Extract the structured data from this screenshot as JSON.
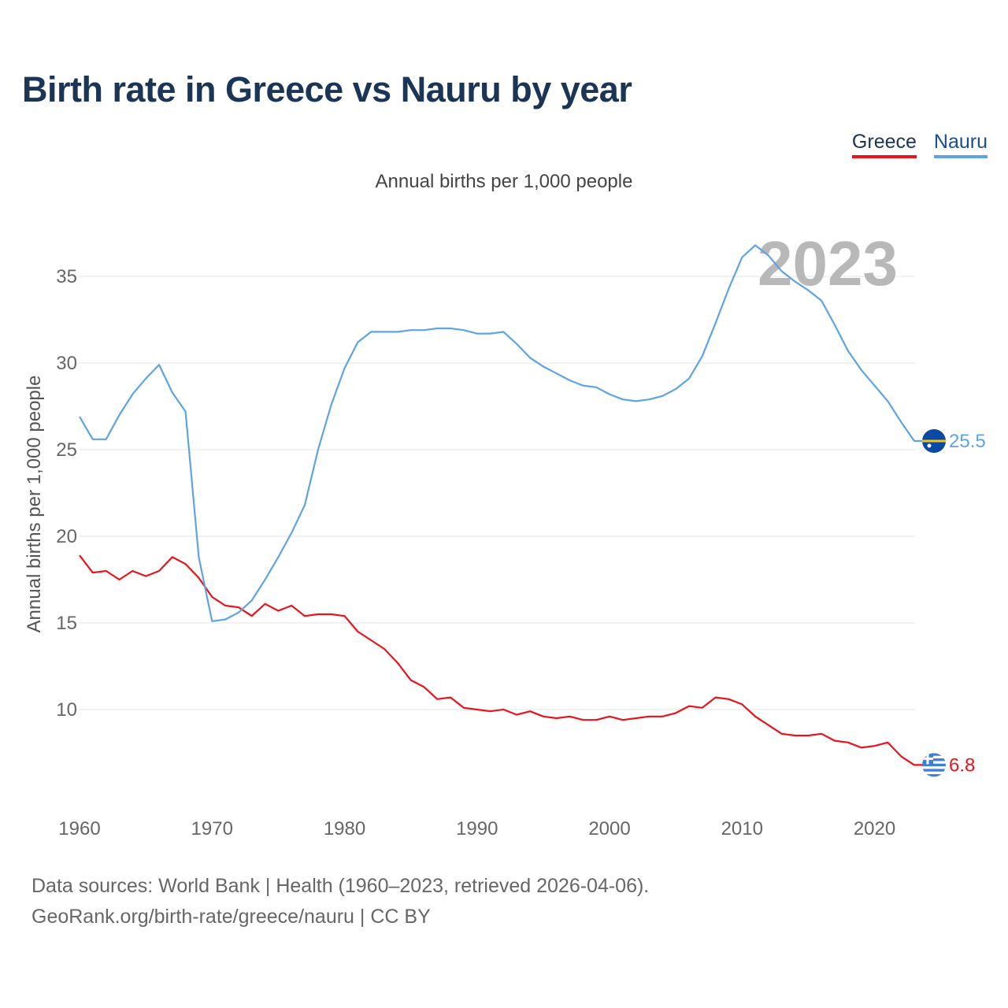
{
  "title": "Birth rate in Greece vs Nauru by year",
  "subtitle": "Annual births per 1,000 people",
  "legend": [
    {
      "name": "Greece",
      "color": "#e8141c",
      "text_color": "#1b3556"
    },
    {
      "name": "Nauru",
      "color": "#5ea3e4",
      "text_color": "#1b4f8a"
    }
  ],
  "footer": {
    "line1": "Data sources: World Bank | Health (1960–2023, retrieved 2026-04-06).",
    "line2": "GeoRank.org/birth-rate/greece/nauru | CC BY"
  },
  "chart_data": {
    "type": "line",
    "title": "Birth rate in Greece vs Nauru by year",
    "ylabel": "Annual births per 1,000 people",
    "xlabel": "",
    "year_label": "2023",
    "xlim": [
      1960,
      2023
    ],
    "ylim": [
      5,
      38
    ],
    "yticks": [
      10,
      15,
      20,
      25,
      30,
      35
    ],
    "xticks": [
      1960,
      1970,
      1980,
      1990,
      2000,
      2010,
      2020
    ],
    "x": [
      1960,
      1961,
      1962,
      1963,
      1964,
      1965,
      1966,
      1967,
      1968,
      1969,
      1970,
      1971,
      1972,
      1973,
      1974,
      1975,
      1976,
      1977,
      1978,
      1979,
      1980,
      1981,
      1982,
      1983,
      1984,
      1985,
      1986,
      1987,
      1988,
      1989,
      1990,
      1991,
      1992,
      1993,
      1994,
      1995,
      1996,
      1997,
      1998,
      1999,
      2000,
      2001,
      2002,
      2003,
      2004,
      2005,
      2006,
      2007,
      2008,
      2009,
      2010,
      2011,
      2012,
      2013,
      2014,
      2015,
      2016,
      2017,
      2018,
      2019,
      2020,
      2021,
      2022,
      2023
    ],
    "series": [
      {
        "name": "Greece",
        "color": "#e8141c",
        "end_label": "6.8",
        "values": [
          18.9,
          17.9,
          18.0,
          17.5,
          18.0,
          17.7,
          18.0,
          18.8,
          18.4,
          17.6,
          16.5,
          16.0,
          15.9,
          15.4,
          16.1,
          15.7,
          16.0,
          15.4,
          15.5,
          15.5,
          15.4,
          14.5,
          14.0,
          13.5,
          12.7,
          11.7,
          11.3,
          10.6,
          10.7,
          10.1,
          10.0,
          9.9,
          10.0,
          9.7,
          9.9,
          9.6,
          9.5,
          9.6,
          9.4,
          9.4,
          9.6,
          9.4,
          9.5,
          9.6,
          9.6,
          9.8,
          10.2,
          10.1,
          10.7,
          10.6,
          10.3,
          9.6,
          9.1,
          8.6,
          8.5,
          8.5,
          8.6,
          8.2,
          8.1,
          7.8,
          7.9,
          8.1,
          7.3,
          6.8
        ]
      },
      {
        "name": "Nauru",
        "color": "#5ea3e4",
        "end_label": "25.5",
        "values": [
          26.9,
          25.6,
          25.6,
          27.0,
          28.2,
          29.1,
          29.9,
          28.3,
          27.2,
          18.8,
          15.1,
          15.2,
          15.6,
          16.3,
          17.5,
          18.8,
          20.2,
          21.8,
          25.0,
          27.6,
          29.7,
          31.2,
          31.8,
          31.8,
          31.8,
          31.9,
          31.9,
          32.0,
          32.0,
          31.9,
          31.7,
          31.7,
          31.8,
          31.1,
          30.3,
          29.8,
          29.4,
          29.0,
          28.7,
          28.6,
          28.2,
          27.9,
          27.8,
          27.9,
          28.1,
          28.5,
          29.1,
          30.4,
          32.3,
          34.3,
          36.1,
          36.8,
          36.2,
          35.3,
          34.7,
          34.2,
          33.6,
          32.2,
          30.7,
          29.6,
          28.7,
          27.8,
          26.6,
          25.5
        ]
      }
    ]
  }
}
